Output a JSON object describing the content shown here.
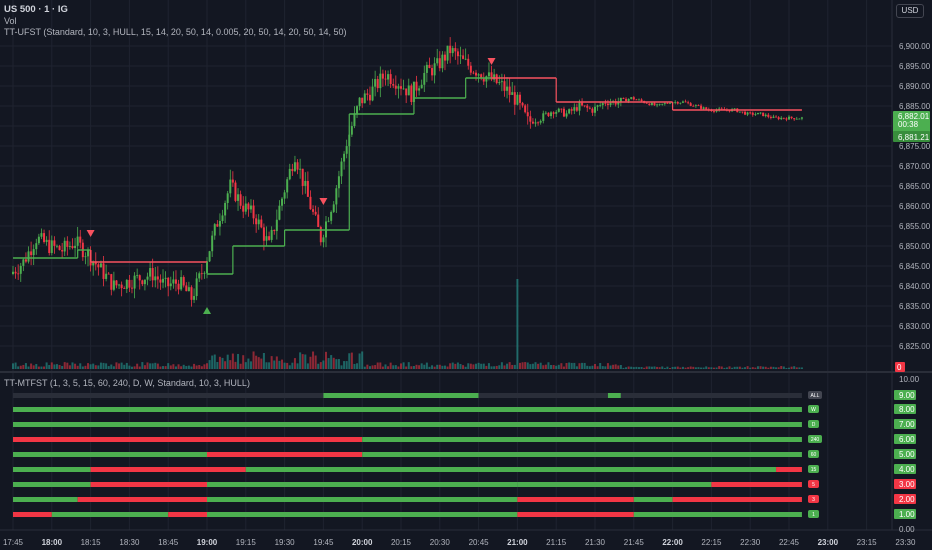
{
  "header": {
    "symbol": "US 500 · 1 · IG",
    "volume_label": "Vol",
    "ufst_label": "TT-UFST (Standard, 10, 3, HULL, 15, 14, 20, 50, 14, 0.005, 20, 50, 14, 20, 50, 14, 50)",
    "mtfst_label": "TT-MTFST (1, 3, 5, 15, 60, 240, D, W, Standard, 10, 3, HULL)",
    "currency": "USD"
  },
  "colors": {
    "background": "#131722",
    "grid": "#1f2330",
    "up": "#4caf50",
    "down": "#f23645",
    "trail_up": "#4caf50",
    "trail_down": "#f7525f",
    "axis_text": "#b2b5be"
  },
  "chart_data": [
    {
      "type": "candlestick",
      "title": "US 500 · 1 · IG",
      "x_ticks": [
        "17:45",
        "18:00",
        "18:15",
        "18:30",
        "18:45",
        "19:00",
        "19:15",
        "19:30",
        "19:45",
        "20:00",
        "20:15",
        "20:30",
        "20:45",
        "21:00",
        "21:15",
        "21:30",
        "21:45",
        "22:00",
        "22:15",
        "22:30",
        "22:45",
        "23:00",
        "23:15",
        "23:30"
      ],
      "bold_ticks": [
        "18:00",
        "19:00",
        "20:00",
        "21:00",
        "22:00",
        "23:00"
      ],
      "y_ticks": [
        "6,900.00",
        "6,895.00",
        "6,890.00",
        "6,885.00",
        "6,880.00",
        "6,875.00",
        "6,870.00",
        "6,865.00",
        "6,860.00",
        "6,855.00",
        "6,850.00",
        "6,845.00",
        "6,840.00",
        "6,835.00",
        "6,830.00",
        "6,825.00"
      ],
      "ylim": [
        6820,
        6903
      ],
      "last_price": "6,882.01",
      "countdown": "00:38",
      "trail_price": "6,881.21",
      "volume_value": "0",
      "price_path": [
        [
          "17:45",
          6843
        ],
        [
          "17:50",
          6846
        ],
        [
          "17:55",
          6852
        ],
        [
          "18:00",
          6850
        ],
        [
          "18:05",
          6849
        ],
        [
          "18:10",
          6851
        ],
        [
          "18:15",
          6848
        ],
        [
          "18:20",
          6844
        ],
        [
          "18:25",
          6840
        ],
        [
          "18:30",
          6841
        ],
        [
          "18:35",
          6842
        ],
        [
          "18:40",
          6843
        ],
        [
          "18:45",
          6840
        ],
        [
          "18:50",
          6841
        ],
        [
          "18:55",
          6837
        ],
        [
          "19:00",
          6845
        ],
        [
          "19:05",
          6856
        ],
        [
          "19:10",
          6865
        ],
        [
          "19:15",
          6860
        ],
        [
          "19:20",
          6857
        ],
        [
          "19:25",
          6850
        ],
        [
          "19:30",
          6862
        ],
        [
          "19:35",
          6873
        ],
        [
          "19:40",
          6862
        ],
        [
          "19:45",
          6852
        ],
        [
          "19:50",
          6862
        ],
        [
          "19:55",
          6876
        ],
        [
          "20:00",
          6886
        ],
        [
          "20:05",
          6889
        ],
        [
          "20:10",
          6893
        ],
        [
          "20:15",
          6891
        ],
        [
          "20:20",
          6888
        ],
        [
          "20:25",
          6893
        ],
        [
          "20:30",
          6895
        ],
        [
          "20:35",
          6899
        ],
        [
          "20:40",
          6896
        ],
        [
          "20:45",
          6894
        ],
        [
          "20:50",
          6892
        ],
        [
          "20:55",
          6890
        ],
        [
          "21:00",
          6887
        ],
        [
          "21:05",
          6881
        ],
        [
          "21:10",
          6882
        ],
        [
          "21:15",
          6884
        ],
        [
          "21:20",
          6883
        ],
        [
          "21:25",
          6885
        ],
        [
          "21:30",
          6884
        ],
        [
          "21:35",
          6886
        ],
        [
          "21:40",
          6886
        ],
        [
          "21:45",
          6887
        ],
        [
          "21:50",
          6886
        ],
        [
          "21:55",
          6885
        ],
        [
          "22:00",
          6886
        ],
        [
          "22:05",
          6886
        ],
        [
          "22:10",
          6885
        ],
        [
          "22:15",
          6884
        ],
        [
          "22:20",
          6884
        ],
        [
          "22:25",
          6884
        ],
        [
          "22:30",
          6883
        ],
        [
          "22:35",
          6883
        ],
        [
          "22:40",
          6882
        ],
        [
          "22:45",
          6882
        ],
        [
          "22:50",
          6882
        ]
      ],
      "trail": [
        {
          "from": "17:45",
          "to": "18:10",
          "value": 6847,
          "dir": "up"
        },
        {
          "from": "18:10",
          "to": "18:15",
          "value": 6849,
          "dir": "up"
        },
        {
          "from": "18:15",
          "to": "19:00",
          "value": 6846,
          "dir": "down"
        },
        {
          "from": "19:00",
          "to": "19:10",
          "value": 6843,
          "dir": "up"
        },
        {
          "from": "19:10",
          "to": "19:30",
          "value": 6850,
          "dir": "up"
        },
        {
          "from": "19:30",
          "to": "19:55",
          "value": 6854,
          "dir": "up"
        },
        {
          "from": "19:55",
          "to": "20:20",
          "value": 6883,
          "dir": "up"
        },
        {
          "from": "20:20",
          "to": "20:40",
          "value": 6887,
          "dir": "up"
        },
        {
          "from": "20:40",
          "to": "20:50",
          "value": 6892,
          "dir": "up"
        },
        {
          "from": "20:50",
          "to": "21:15",
          "value": 6892,
          "dir": "down"
        },
        {
          "from": "21:15",
          "to": "22:00",
          "value": 6886,
          "dir": "down"
        },
        {
          "from": "22:00",
          "to": "22:50",
          "value": 6884,
          "dir": "down"
        }
      ],
      "signals": [
        {
          "x": "18:15",
          "dir": "down",
          "price": 6853
        },
        {
          "x": "19:00",
          "dir": "up",
          "price": 6834
        },
        {
          "x": "19:45",
          "dir": "down",
          "price": 6861
        },
        {
          "x": "20:50",
          "dir": "down",
          "price": 6896
        }
      ],
      "volume_spike": {
        "x": "21:00",
        "value": 90
      }
    },
    {
      "type": "heatmap",
      "title": "TT-MTFST (1, 3, 5, 15, 60, 240, D, W, Standard, 10, 3, HULL)",
      "y_ticks": [
        "9.00",
        "8.00",
        "7.00",
        "6.00",
        "5.00",
        "4.00",
        "3.00",
        "2.00",
        "1.00",
        "0.00",
        "10.00"
      ],
      "rows": [
        {
          "level": 9,
          "badge": "ALL",
          "label_dir": "up",
          "segments": [
            [
              "17:45",
              "19:45",
              "none"
            ],
            [
              "19:45",
              "20:45",
              "up"
            ],
            [
              "20:45",
              "21:35",
              "none"
            ],
            [
              "21:35",
              "21:40",
              "up"
            ],
            [
              "21:40",
              "22:50",
              "none"
            ]
          ]
        },
        {
          "level": 8,
          "badge": "W",
          "label_dir": "up",
          "segments": [
            [
              "17:45",
              "22:50",
              "up"
            ]
          ]
        },
        {
          "level": 7,
          "badge": "D",
          "label_dir": "up",
          "segments": [
            [
              "17:45",
              "22:50",
              "up"
            ]
          ]
        },
        {
          "level": 6,
          "badge": "240",
          "label_dir": "up",
          "segments": [
            [
              "17:45",
              "20:00",
              "down"
            ],
            [
              "20:00",
              "22:50",
              "up"
            ]
          ]
        },
        {
          "level": 5,
          "badge": "60",
          "label_dir": "up",
          "segments": [
            [
              "17:45",
              "19:00",
              "up"
            ],
            [
              "19:00",
              "20:00",
              "down"
            ],
            [
              "20:00",
              "22:50",
              "up"
            ]
          ]
        },
        {
          "level": 4,
          "badge": "15",
          "label_dir": "up",
          "segments": [
            [
              "17:45",
              "18:15",
              "up"
            ],
            [
              "18:15",
              "19:15",
              "down"
            ],
            [
              "19:15",
              "22:40",
              "up"
            ],
            [
              "22:40",
              "22:50",
              "down"
            ]
          ]
        },
        {
          "level": 3,
          "badge": "5",
          "label_dir": "down",
          "segments": [
            [
              "17:45",
              "18:15",
              "up"
            ],
            [
              "18:15",
              "19:00",
              "down"
            ],
            [
              "19:00",
              "21:00",
              "up"
            ],
            [
              "21:00",
              "22:15",
              "up"
            ],
            [
              "22:15",
              "22:50",
              "down"
            ]
          ]
        },
        {
          "level": 2,
          "badge": "3",
          "label_dir": "down",
          "segments": [
            [
              "17:45",
              "18:10",
              "up"
            ],
            [
              "18:10",
              "19:00",
              "down"
            ],
            [
              "19:00",
              "21:00",
              "up"
            ],
            [
              "21:00",
              "21:45",
              "down"
            ],
            [
              "21:45",
              "22:00",
              "up"
            ],
            [
              "22:00",
              "22:50",
              "down"
            ]
          ]
        },
        {
          "level": 1,
          "badge": "1",
          "label_dir": "up",
          "segments": [
            [
              "17:45",
              "18:00",
              "down"
            ],
            [
              "18:00",
              "18:45",
              "up"
            ],
            [
              "18:45",
              "19:00",
              "down"
            ],
            [
              "19:00",
              "21:00",
              "up"
            ],
            [
              "21:00",
              "21:45",
              "down"
            ],
            [
              "21:45",
              "22:50",
              "up"
            ]
          ]
        }
      ]
    }
  ]
}
